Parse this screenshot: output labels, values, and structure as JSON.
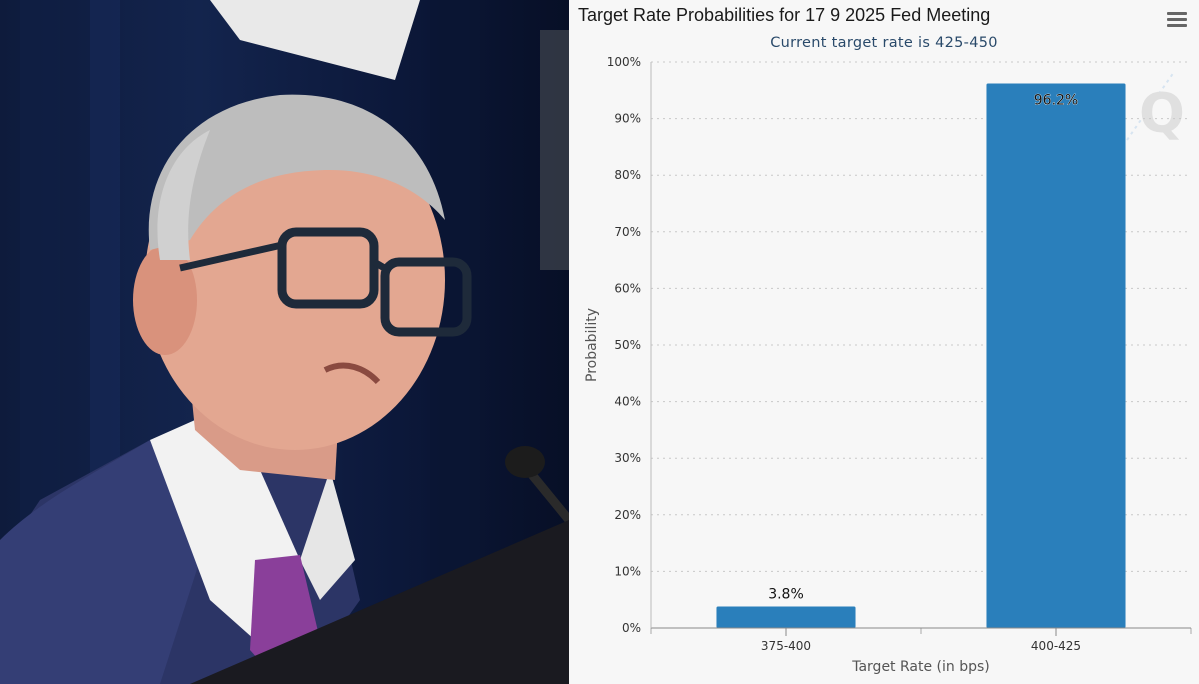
{
  "chart_data": {
    "type": "bar",
    "title": "Target Rate Probabilities for 17 9 2025 Fed Meeting",
    "subtitle": "Current target rate is 425-450",
    "categories": [
      "375-400",
      "400-425"
    ],
    "values": [
      3.8,
      96.2
    ],
    "data_labels": [
      "3.8%",
      "96.2%"
    ],
    "xlabel": "Target Rate (in bps)",
    "ylabel": "Probability",
    "ylim": [
      0,
      100
    ],
    "yticks": [
      0,
      10,
      20,
      30,
      40,
      50,
      60,
      70,
      80,
      90,
      100
    ],
    "ytick_labels": [
      "0%",
      "10%",
      "20%",
      "30%",
      "40%",
      "50%",
      "60%",
      "70%",
      "80%",
      "90%",
      "100%"
    ],
    "grid": true,
    "bar_color": "#2a7fbb"
  },
  "watermark": {
    "text": "Q"
  },
  "icons": {
    "menu": "hamburger-menu-icon"
  }
}
